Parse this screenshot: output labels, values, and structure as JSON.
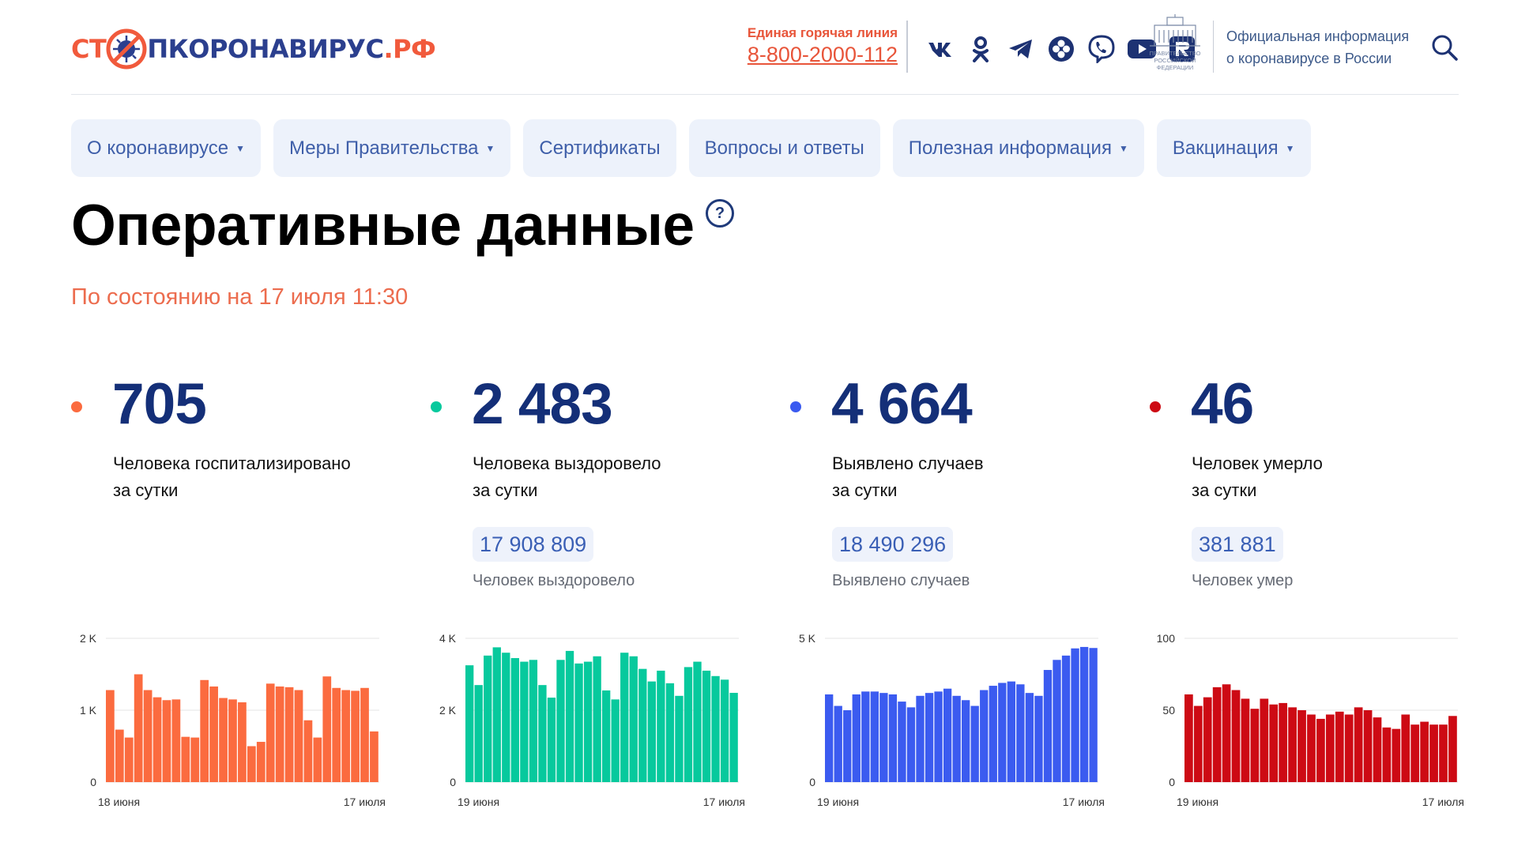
{
  "header": {
    "logo": {
      "part1": "СТ",
      "part2": "ПКОРОНАВИРУС",
      "part3": ".РФ"
    },
    "hotline": {
      "label": "Единая горячая линия",
      "phone": "8-800-2000-112"
    },
    "socials": [
      "vk-icon",
      "ok-icon",
      "telegram-icon",
      "aperture-icon",
      "viber-icon",
      "youtube-icon",
      "rutube-icon"
    ],
    "gov": {
      "line1": "Официальная информация",
      "line2": "о коронавирусе в России",
      "emblem": [
        "ПРАВИТЕЛЬСТВО",
        "РОССИЙСКОЙ",
        "ФЕДЕРАЦИИ"
      ]
    }
  },
  "nav": [
    {
      "label": "О коронавирусе",
      "caret": true
    },
    {
      "label": "Меры Правительства",
      "caret": true
    },
    {
      "label": "Сертификаты",
      "caret": false
    },
    {
      "label": "Вопросы и ответы",
      "caret": false
    },
    {
      "label": "Полезная информация",
      "caret": true
    },
    {
      "label": "Вакцинация",
      "caret": true
    }
  ],
  "page": {
    "title": "Оперативные данные",
    "updated": "По состоянию на 17 июля 11:30"
  },
  "colors": {
    "hosp": "#fb6b3f",
    "recovered": "#07c99d",
    "cases": "#3b5bf0",
    "deaths": "#cd0a14",
    "accent": "#142f78"
  },
  "stats": [
    {
      "value": "705",
      "desc1": "Человека госпитализировано",
      "desc2": "за сутки",
      "total": "",
      "total_label": ""
    },
    {
      "value": "2 483",
      "desc1": "Человека выздоровело",
      "desc2": "за сутки",
      "total": "17 908 809",
      "total_label": "Человек выздоровело"
    },
    {
      "value": "4 664",
      "desc1": "Выявлено случаев",
      "desc2": "за сутки",
      "total": "18 490 296",
      "total_label": "Выявлено случаев"
    },
    {
      "value": "46",
      "desc1": "Человек умерло",
      "desc2": "за сутки",
      "total": "381 881",
      "total_label": "Человек умер"
    }
  ],
  "chart_data": [
    {
      "type": "bar",
      "title": "",
      "x_start": "18 июня",
      "x_end": "17 июля",
      "yticks": [
        "0",
        "1 K",
        "2 K"
      ],
      "ylim": [
        0,
        2000
      ],
      "values": [
        1280,
        730,
        620,
        1500,
        1280,
        1180,
        1140,
        1150,
        630,
        620,
        1420,
        1330,
        1170,
        1150,
        1110,
        500,
        560,
        1370,
        1330,
        1320,
        1280,
        860,
        620,
        1470,
        1310,
        1280,
        1270,
        1310,
        705
      ]
    },
    {
      "type": "bar",
      "title": "",
      "x_start": "19 июня",
      "x_end": "17 июля",
      "yticks": [
        "0",
        "2 K",
        "4 K"
      ],
      "ylim": [
        0,
        4000
      ],
      "values": [
        3250,
        2700,
        3520,
        3750,
        3600,
        3450,
        3350,
        3400,
        2700,
        2350,
        3400,
        3650,
        3300,
        3350,
        3500,
        2550,
        2300,
        3600,
        3500,
        3150,
        2800,
        3100,
        2750,
        2400,
        3200,
        3350,
        3100,
        2950,
        2850,
        2483
      ]
    },
    {
      "type": "bar",
      "title": "",
      "x_start": "19 июня",
      "x_end": "17 июля",
      "yticks": [
        "0",
        "5 K"
      ],
      "ylim": [
        0,
        5000
      ],
      "values": [
        3050,
        2650,
        2500,
        3050,
        3150,
        3150,
        3100,
        3050,
        2800,
        2600,
        3000,
        3100,
        3150,
        3250,
        3000,
        2850,
        2650,
        3200,
        3350,
        3450,
        3500,
        3400,
        3100,
        3000,
        3900,
        4250,
        4400,
        4650,
        4700,
        4664
      ]
    },
    {
      "type": "bar",
      "title": "",
      "x_start": "19 июня",
      "x_end": "17 июля",
      "yticks": [
        "0",
        "50",
        "100"
      ],
      "ylim": [
        0,
        100
      ],
      "values": [
        61,
        53,
        59,
        66,
        68,
        64,
        58,
        51,
        58,
        54,
        55,
        52,
        50,
        47,
        44,
        47,
        49,
        47,
        52,
        50,
        45,
        38,
        37,
        47,
        40,
        42,
        40,
        40,
        46
      ]
    }
  ]
}
